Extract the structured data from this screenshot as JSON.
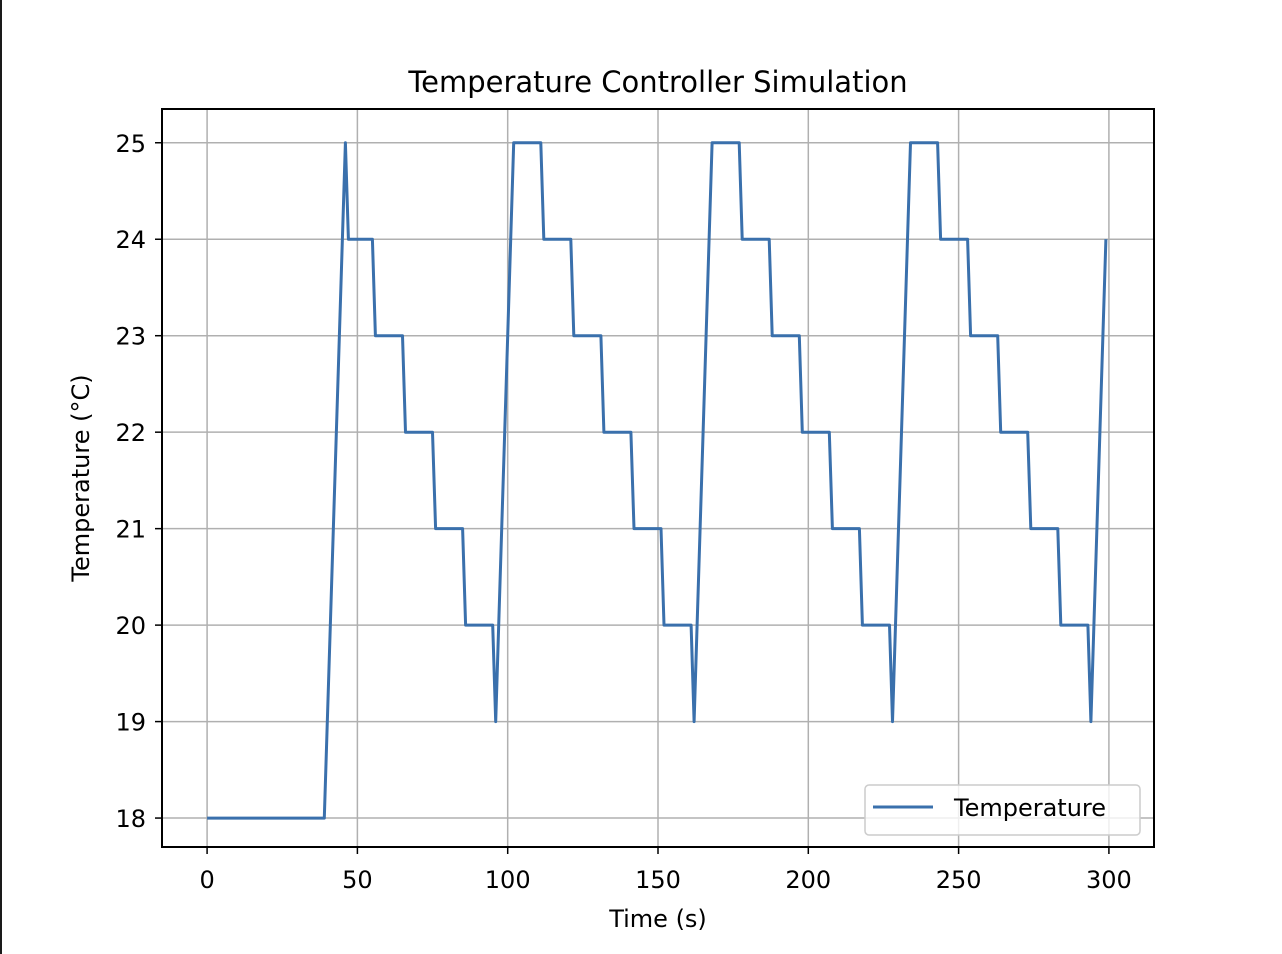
{
  "chart_data": {
    "type": "line",
    "title": "Temperature Controller Simulation",
    "xlabel": "Time (s)",
    "ylabel": "Temperature (°C)",
    "xlim": [
      -15,
      315
    ],
    "ylim": [
      17.7,
      25.35
    ],
    "xticks": [
      0,
      50,
      100,
      150,
      200,
      250,
      300
    ],
    "yticks": [
      18,
      19,
      20,
      21,
      22,
      23,
      24,
      25
    ],
    "grid": true,
    "legend_position": "lower-right",
    "series": [
      {
        "name": "Temperature",
        "color": "#3a70ac",
        "x": [
          0,
          39,
          46,
          47,
          55,
          56,
          65,
          66,
          75,
          76,
          85,
          86,
          95,
          96,
          102,
          111,
          112,
          121,
          122,
          131,
          132,
          141,
          142,
          151,
          152,
          161,
          162,
          168,
          177,
          178,
          187,
          188,
          197,
          198,
          207,
          208,
          217,
          218,
          227,
          228,
          234,
          243,
          244,
          253,
          254,
          263,
          264,
          273,
          274,
          283,
          284,
          293,
          294,
          299
        ],
        "y": [
          18,
          18,
          25,
          24,
          24,
          23,
          23,
          22,
          22,
          21,
          21,
          20,
          20,
          19,
          25,
          25,
          24,
          24,
          23,
          23,
          22,
          22,
          21,
          21,
          20,
          20,
          19,
          25,
          25,
          24,
          24,
          23,
          23,
          22,
          22,
          21,
          21,
          20,
          20,
          19,
          25,
          25,
          24,
          24,
          23,
          23,
          22,
          22,
          21,
          21,
          20,
          20,
          19,
          24
        ]
      }
    ]
  }
}
